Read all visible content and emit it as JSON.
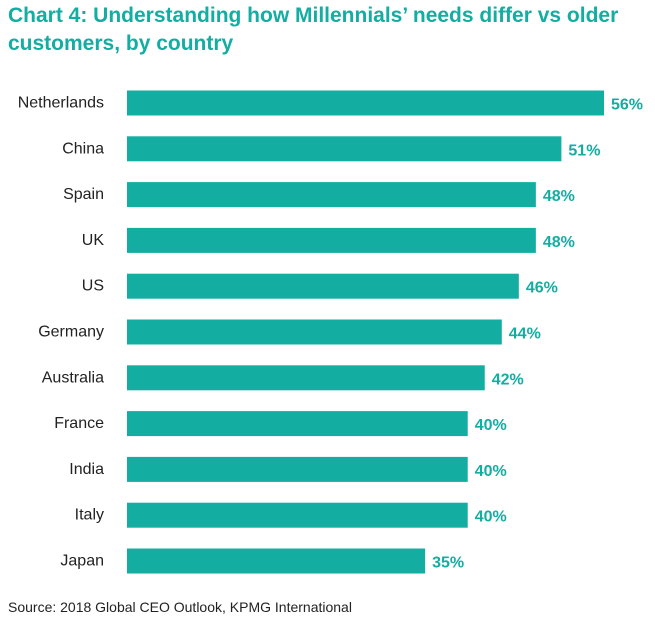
{
  "colors": {
    "accent": "#14ada2",
    "bar": "#14ada2",
    "text": "#222222"
  },
  "chart_data": {
    "type": "bar",
    "orientation": "horizontal",
    "title": "Chart 4: Understanding how Millennials’ needs differ vs older customers, by country",
    "categories": [
      "Netherlands",
      "China",
      "Spain",
      "UK",
      "US",
      "Germany",
      "Australia",
      "France",
      "India",
      "Italy",
      "Japan"
    ],
    "values": [
      56,
      51,
      48,
      48,
      46,
      44,
      42,
      40,
      40,
      40,
      35
    ],
    "value_labels": [
      "56%",
      "51%",
      "48%",
      "48%",
      "46%",
      "44%",
      "42%",
      "40%",
      "40%",
      "40%",
      "35%"
    ],
    "unit": "%",
    "xlabel": "",
    "ylabel": "",
    "xlim": [
      0,
      56
    ],
    "grid": false,
    "legend": "none"
  },
  "source": "Source: 2018 Global CEO Outlook, KPMG International"
}
